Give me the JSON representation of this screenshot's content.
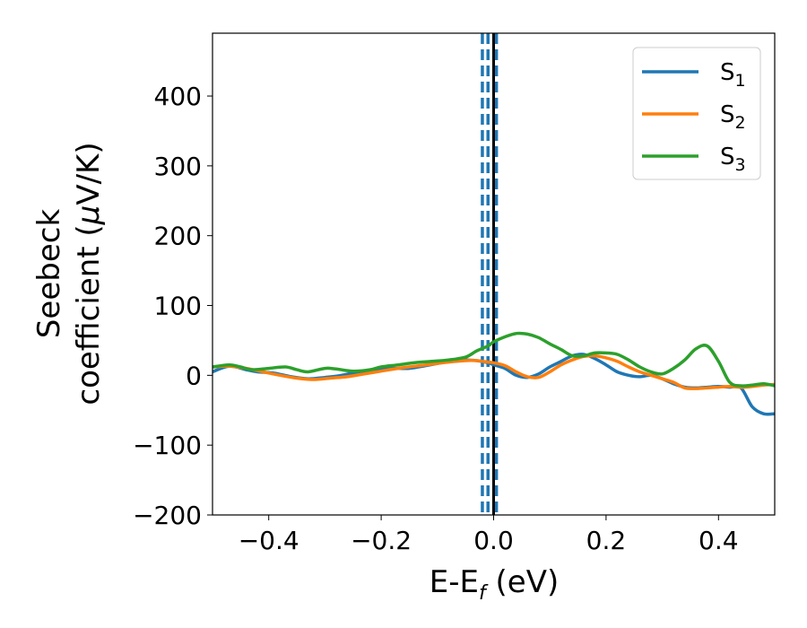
{
  "chart_data": {
    "type": "line",
    "xlabel": "E-E",
    "xlabel_sub": "f",
    "xlabel_unit": " (eV)",
    "ylabel_line1": "Seebeck",
    "ylabel_line2": "coefficient  (",
    "ylabel_mu": "μ",
    "ylabel_unit": "V/K)",
    "xlim": [
      -0.5,
      0.5
    ],
    "ylim": [
      -200,
      490
    ],
    "xticks": [
      -0.4,
      -0.2,
      0.0,
      0.2,
      0.4
    ],
    "xtick_labels": [
      "−0.4",
      "−0.2",
      "0.0",
      "0.2",
      "0.4"
    ],
    "yticks": [
      -200,
      -100,
      0,
      100,
      200,
      300,
      400
    ],
    "ytick_labels": [
      "−200",
      "−100",
      "0",
      "100",
      "200",
      "300",
      "400"
    ],
    "grid": false,
    "legend_position": "top-right",
    "vlines": [
      {
        "x": -0.02,
        "style": "dashed",
        "color": "#1f77b4"
      },
      {
        "x": -0.01,
        "style": "dashed",
        "color": "#1f77b4"
      },
      {
        "x": 0.005,
        "style": "dashed",
        "color": "#1f77b4"
      },
      {
        "x": 0.0,
        "style": "solid",
        "color": "#000000"
      }
    ],
    "series": [
      {
        "name": "S",
        "sub": "1",
        "color": "#1f77b4",
        "x": [
          -0.5,
          -0.47,
          -0.44,
          -0.42,
          -0.39,
          -0.36,
          -0.33,
          -0.3,
          -0.27,
          -0.24,
          -0.21,
          -0.18,
          -0.15,
          -0.12,
          -0.1,
          -0.08,
          -0.05,
          -0.03,
          -0.01,
          0.0,
          0.02,
          0.04,
          0.06,
          0.08,
          0.1,
          0.12,
          0.14,
          0.16,
          0.18,
          0.2,
          0.22,
          0.24,
          0.26,
          0.28,
          0.3,
          0.32,
          0.34,
          0.36,
          0.38,
          0.4,
          0.42,
          0.44,
          0.46,
          0.48,
          0.5
        ],
        "y": [
          5,
          13,
          8,
          5,
          3,
          -2,
          -5,
          -3,
          0,
          5,
          8,
          10,
          10,
          14,
          17,
          20,
          22,
          21,
          18,
          15,
          10,
          0,
          -3,
          2,
          12,
          20,
          28,
          30,
          24,
          15,
          5,
          0,
          -2,
          0,
          -5,
          -12,
          -17,
          -18,
          -17,
          -16,
          -17,
          -18,
          -45,
          -55,
          -55
        ]
      },
      {
        "name": "S",
        "sub": "2",
        "color": "#ff7f0e",
        "x": [
          -0.5,
          -0.47,
          -0.44,
          -0.41,
          -0.38,
          -0.35,
          -0.32,
          -0.29,
          -0.26,
          -0.23,
          -0.2,
          -0.17,
          -0.14,
          -0.11,
          -0.08,
          -0.05,
          -0.03,
          -0.01,
          0.0,
          0.02,
          0.04,
          0.06,
          0.08,
          0.1,
          0.12,
          0.14,
          0.16,
          0.18,
          0.2,
          0.22,
          0.24,
          0.26,
          0.28,
          0.3,
          0.32,
          0.34,
          0.36,
          0.38,
          0.4,
          0.42,
          0.44,
          0.46,
          0.48,
          0.5
        ],
        "y": [
          12,
          13,
          10,
          5,
          0,
          -4,
          -6,
          -4,
          -2,
          2,
          6,
          10,
          13,
          16,
          19,
          21,
          21,
          19,
          18,
          14,
          5,
          -2,
          -3,
          5,
          15,
          22,
          27,
          28,
          25,
          20,
          12,
          5,
          0,
          -5,
          -10,
          -18,
          -19,
          -18,
          -17,
          -16,
          -17,
          -16,
          -14,
          -13
        ]
      },
      {
        "name": "S",
        "sub": "3",
        "color": "#2ca02c",
        "x": [
          -0.5,
          -0.47,
          -0.45,
          -0.43,
          -0.4,
          -0.37,
          -0.35,
          -0.33,
          -0.3,
          -0.28,
          -0.25,
          -0.22,
          -0.2,
          -0.17,
          -0.14,
          -0.11,
          -0.08,
          -0.05,
          -0.03,
          -0.01,
          0.0,
          0.02,
          0.04,
          0.06,
          0.08,
          0.1,
          0.12,
          0.14,
          0.16,
          0.18,
          0.2,
          0.22,
          0.24,
          0.26,
          0.28,
          0.3,
          0.32,
          0.34,
          0.36,
          0.38,
          0.4,
          0.42,
          0.44,
          0.46,
          0.48,
          0.5
        ],
        "y": [
          12,
          15,
          12,
          8,
          10,
          12,
          8,
          5,
          10,
          9,
          6,
          8,
          12,
          15,
          18,
          20,
          22,
          26,
          35,
          42,
          48,
          55,
          60,
          59,
          54,
          45,
          37,
          28,
          28,
          32,
          32,
          30,
          22,
          12,
          5,
          2,
          10,
          22,
          38,
          42,
          20,
          -10,
          -15,
          -14,
          -12,
          -15
        ]
      }
    ]
  }
}
